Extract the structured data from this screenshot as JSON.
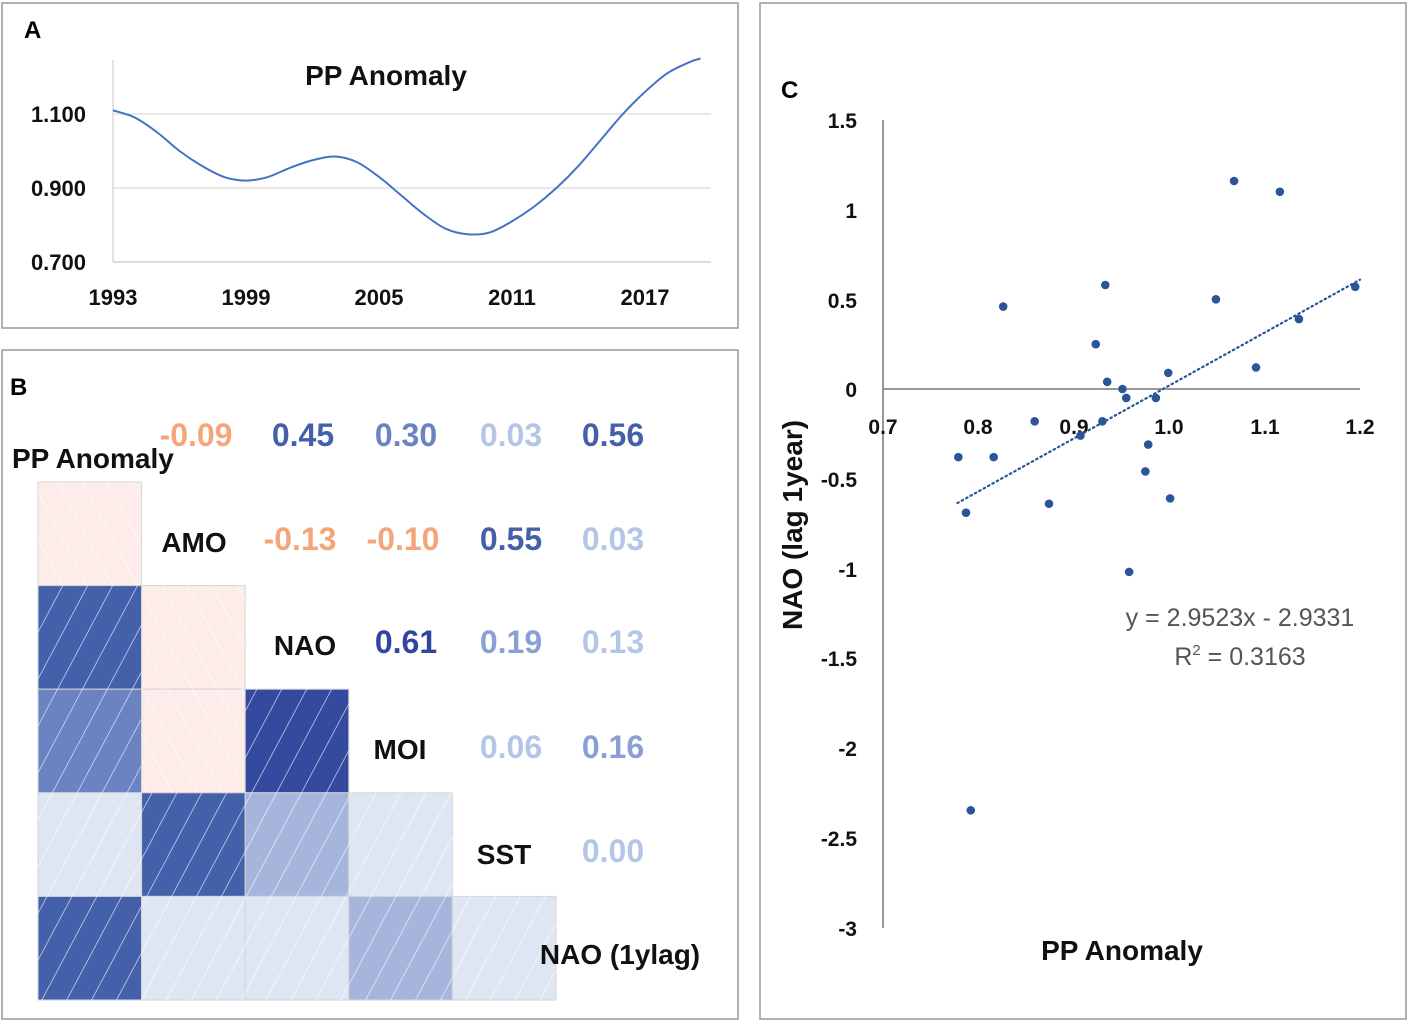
{
  "colors": {
    "line": "#4472c4",
    "point": "#2a5599",
    "negative_fill": "#fdecea",
    "negative_text": "#f4a67a"
  },
  "chart_data": [
    {
      "panel": "A",
      "type": "line",
      "title": "PP Anomaly",
      "xlabel": "",
      "ylabel": "",
      "x": [
        1993,
        1994,
        1995,
        1996,
        1997,
        1998,
        1999,
        2000,
        2001,
        2002,
        2003,
        2004,
        2005,
        2006,
        2007,
        2008,
        2009,
        2010,
        2011,
        2012,
        2013,
        2014,
        2015,
        2016,
        2017,
        2018,
        2019,
        2019.5
      ],
      "values": [
        1.11,
        1.09,
        1.05,
        1.0,
        0.96,
        0.93,
        0.92,
        0.93,
        0.955,
        0.975,
        0.985,
        0.97,
        0.93,
        0.88,
        0.83,
        0.79,
        0.775,
        0.78,
        0.81,
        0.85,
        0.9,
        0.96,
        1.03,
        1.1,
        1.16,
        1.21,
        1.24,
        1.25
      ],
      "xticks": [
        "1993",
        "1999",
        "2005",
        "2011",
        "2017"
      ],
      "yticks": [
        "0.700",
        "0.900",
        "1.100"
      ],
      "ylim": [
        0.7,
        1.25
      ],
      "grid": true
    },
    {
      "panel": "B",
      "type": "heatmap",
      "variables": [
        "PP Anomaly",
        "AMO",
        "NAO",
        "MOI",
        "SST",
        "NAO (1ylag)"
      ],
      "matrix": [
        [
          null,
          -0.09,
          0.45,
          0.3,
          0.03,
          0.56
        ],
        [
          -0.09,
          null,
          -0.13,
          -0.1,
          0.55,
          0.03
        ],
        [
          0.45,
          -0.13,
          null,
          0.61,
          0.19,
          0.13
        ],
        [
          0.3,
          -0.1,
          0.61,
          null,
          0.06,
          0.16
        ],
        [
          0.03,
          0.55,
          0.19,
          0.06,
          null,
          0.0
        ],
        [
          0.56,
          0.03,
          0.13,
          0.16,
          0.0,
          null
        ]
      ],
      "labels": {
        "r0": [
          "-0.09",
          "0.45",
          "0.30",
          "0.03",
          "0.56"
        ],
        "r1": [
          "-0.13",
          "-0.10",
          "0.55",
          "0.03"
        ],
        "r2": [
          "0.61",
          "0.19",
          "0.13"
        ],
        "r3": [
          "0.06",
          "0.16"
        ],
        "r4": [
          "0.00"
        ]
      }
    },
    {
      "panel": "C",
      "type": "scatter",
      "xlabel": "PP Anomaly",
      "ylabel": "NAO (lag 1year)",
      "xlim": [
        0.7,
        1.2
      ],
      "ylim": [
        -3,
        1.5
      ],
      "xticks": [
        "0.7",
        "0.8",
        "0.9",
        "1.0",
        "1.1",
        "1.2"
      ],
      "yticks": [
        "1.5",
        "1",
        "0.5",
        "0",
        "-0.5",
        "-1",
        "-1.5",
        "-2",
        "-2.5",
        "-3"
      ],
      "points": [
        [
          1.068,
          1.16
        ],
        [
          1.116,
          1.1
        ],
        [
          0.933,
          0.58
        ],
        [
          0.826,
          0.46
        ],
        [
          1.049,
          0.5
        ],
        [
          1.195,
          0.57
        ],
        [
          1.136,
          0.39
        ],
        [
          0.923,
          0.25
        ],
        [
          1.091,
          0.12
        ],
        [
          0.999,
          0.09
        ],
        [
          0.935,
          0.04
        ],
        [
          0.951,
          0.0
        ],
        [
          0.955,
          -0.05
        ],
        [
          0.986,
          -0.05
        ],
        [
          0.859,
          -0.18
        ],
        [
          0.93,
          -0.18
        ],
        [
          0.907,
          -0.26
        ],
        [
          0.978,
          -0.31
        ],
        [
          0.779,
          -0.38
        ],
        [
          0.816,
          -0.38
        ],
        [
          0.975,
          -0.46
        ],
        [
          0.874,
          -0.64
        ],
        [
          1.001,
          -0.61
        ],
        [
          0.787,
          -0.69
        ],
        [
          0.958,
          -1.02
        ],
        [
          0.792,
          -2.35
        ]
      ],
      "trendline": {
        "type": "linear",
        "slope": 2.9523,
        "intercept": -2.9331,
        "x_range": [
          0.778,
          1.2
        ],
        "style": "dotted"
      },
      "equation": "y = 2.9523x - 2.9331",
      "r2_prefix": "R",
      "r2_sup": "2",
      "r2_value": " = 0.3163"
    }
  ],
  "panels": {
    "a": "A",
    "b": "B",
    "c": "C"
  }
}
